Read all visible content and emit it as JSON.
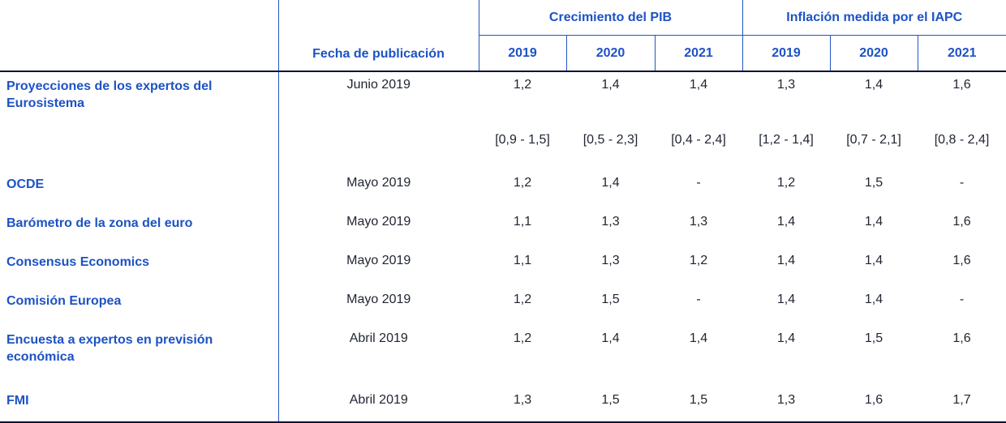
{
  "table": {
    "header": {
      "date_col": "Fecha de publicación",
      "group_gdp": "Crecimiento del PIB",
      "group_hicp": "Inflación medida por el IAPC",
      "years": [
        "2019",
        "2020",
        "2021"
      ]
    },
    "rows": [
      {
        "label": "Proyecciones de los expertos del Eurosistema",
        "date": "Junio 2019",
        "gdp": [
          "1,2",
          "1,4",
          "1,4"
        ],
        "hicp": [
          "1,3",
          "1,4",
          "1,6"
        ],
        "gdp_ranges": [
          "[0,9 - 1,5]",
          "[0,5 - 2,3]",
          "[0,4 - 2,4]"
        ],
        "hicp_ranges": [
          "[1,2 - 1,4]",
          "[0,7 - 2,1]",
          "[0,8 - 2,4]"
        ]
      },
      {
        "label": "OCDE",
        "date": "Mayo 2019",
        "gdp": [
          "1,2",
          "1,4",
          "-"
        ],
        "hicp": [
          "1,2",
          "1,5",
          "-"
        ]
      },
      {
        "label": "Barómetro de la zona del euro",
        "date": "Mayo 2019",
        "gdp": [
          "1,1",
          "1,3",
          "1,3"
        ],
        "hicp": [
          "1,4",
          "1,4",
          "1,6"
        ]
      },
      {
        "label": "Consensus Economics",
        "date": "Mayo 2019",
        "gdp": [
          "1,1",
          "1,3",
          "1,2"
        ],
        "hicp": [
          "1,4",
          "1,4",
          "1,6"
        ]
      },
      {
        "label": "Comisión Europea",
        "date": "Mayo 2019",
        "gdp": [
          "1,2",
          "1,5",
          "-"
        ],
        "hicp": [
          "1,4",
          "1,4",
          "-"
        ]
      },
      {
        "label": "Encuesta a expertos en previsión económica",
        "date": "Abril 2019",
        "gdp": [
          "1,2",
          "1,4",
          "1,4"
        ],
        "hicp": [
          "1,4",
          "1,5",
          "1,6"
        ]
      },
      {
        "label": "FMI",
        "date": "Abril 2019",
        "gdp": [
          "1,3",
          "1,5",
          "1,5"
        ],
        "hicp": [
          "1,3",
          "1,6",
          "1,7"
        ]
      }
    ],
    "colors": {
      "accent_blue_text": "#1D52C4",
      "grid_blue_line": "#2156C6",
      "dark_rule_line": "#0D1433",
      "value_text": "#1F2430",
      "background": "#FFFFFF"
    }
  }
}
